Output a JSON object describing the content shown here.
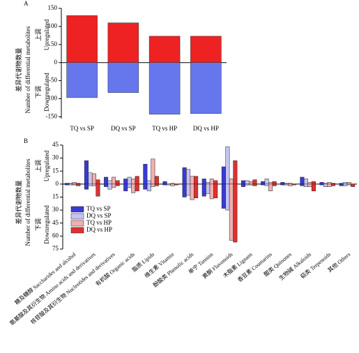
{
  "chart_data": [
    {
      "type": "updown-bar",
      "panel": "A",
      "ylabel_cn": "差异代谢物数量",
      "ylabel_en": "Number of differential metabolites",
      "up_cn": "上调",
      "up_en": "Upregulated",
      "down_cn": "下调",
      "down_en": "Downregulated",
      "categories": [
        "TQ vs SP",
        "DQ vs SP",
        "TQ vs HP",
        "DQ vs HP"
      ],
      "series": [
        {
          "color": "#ee2222",
          "values": [
            130,
            110,
            73,
            73
          ]
        },
        {
          "color": "#6677ee",
          "values": [
            -97,
            -83,
            -143,
            -141
          ]
        }
      ],
      "ylim": [
        -155,
        150
      ],
      "yticks": [
        -150,
        -100,
        -50,
        0,
        50,
        100,
        150
      ]
    },
    {
      "type": "grouped-updown-bar",
      "panel": "B",
      "ylabel_cn": "差异代谢物数量",
      "ylabel_en": "Number of differential metabolites",
      "up_cn": "上调",
      "up_en": "Upregulated",
      "down_cn": "下调",
      "down_en": "Downregulated",
      "categories": [
        "糖及糖醇 Saccharides and alcohol",
        "氨基酸及其衍生物 Amino acids and derivatives",
        "核苷酸及其衍生物 Nucleotides and derivatives",
        "有机酸 Organic acids",
        "脂质 Lipids",
        "维生素 Vitamin",
        "酚酸类 Phenolic acids",
        "单宁 Tannins",
        "黄酮 Flavonoids",
        "木脂素 Lignans",
        "香豆素 Coumarins",
        "醌类 Quinones",
        "生物碱 Alkaloids",
        "萜类 Terpenoids",
        "其他 Others"
      ],
      "series": [
        {
          "name": "TQ vs SP",
          "color": "#3a3ad8",
          "up_values": [
            1,
            27,
            8,
            6,
            23,
            3,
            19,
            6,
            20,
            4,
            3,
            2,
            8,
            2,
            1
          ],
          "down_values": [
            -1,
            -6,
            -3,
            -8,
            -6,
            -1,
            -15,
            -14,
            -28,
            -3,
            -1,
            -1,
            -2,
            -1,
            -2
          ]
        },
        {
          "name": "DQ vs SP",
          "color": "#c4c4f2",
          "up_values": [
            1,
            13,
            4,
            8,
            4,
            0,
            17,
            2,
            43,
            4,
            6,
            1,
            6,
            1,
            2
          ],
          "down_values": [
            -1,
            -2,
            -6,
            -4,
            -8,
            -1,
            -13,
            -11,
            -30,
            -1,
            -2,
            -1,
            -3,
            -3,
            -2
          ]
        },
        {
          "name": "TQ vs HP",
          "color": "#f2b0b0",
          "up_values": [
            2,
            12,
            8,
            6,
            29,
            1,
            9,
            6,
            6,
            3,
            2,
            1,
            2,
            2,
            2
          ],
          "down_values": [
            -1,
            -2,
            -4,
            -10,
            -3,
            -2,
            -18,
            -17,
            -65,
            -1,
            -8,
            -2,
            -3,
            -3,
            -1
          ]
        },
        {
          "name": "DQ vs HP",
          "color": "#e03030",
          "up_values": [
            1,
            5,
            4,
            9,
            9,
            0,
            9,
            4,
            27,
            5,
            3,
            0,
            3,
            1,
            0
          ],
          "down_values": [
            -2,
            -14,
            -2,
            -8,
            -2,
            -1,
            -16,
            -16,
            -67,
            -2,
            -2,
            -1,
            -8,
            -2,
            -3
          ]
        }
      ],
      "ylim": [
        -75,
        45
      ],
      "yticks": [
        {
          "value": -75,
          "label": "75"
        },
        {
          "value": -60,
          "label": "60"
        },
        {
          "value": -45,
          "label": "45"
        },
        {
          "value": -30,
          "label": "30"
        },
        {
          "value": -15,
          "label": "15"
        },
        0,
        15,
        30,
        45
      ],
      "legend": "lower-left"
    }
  ]
}
